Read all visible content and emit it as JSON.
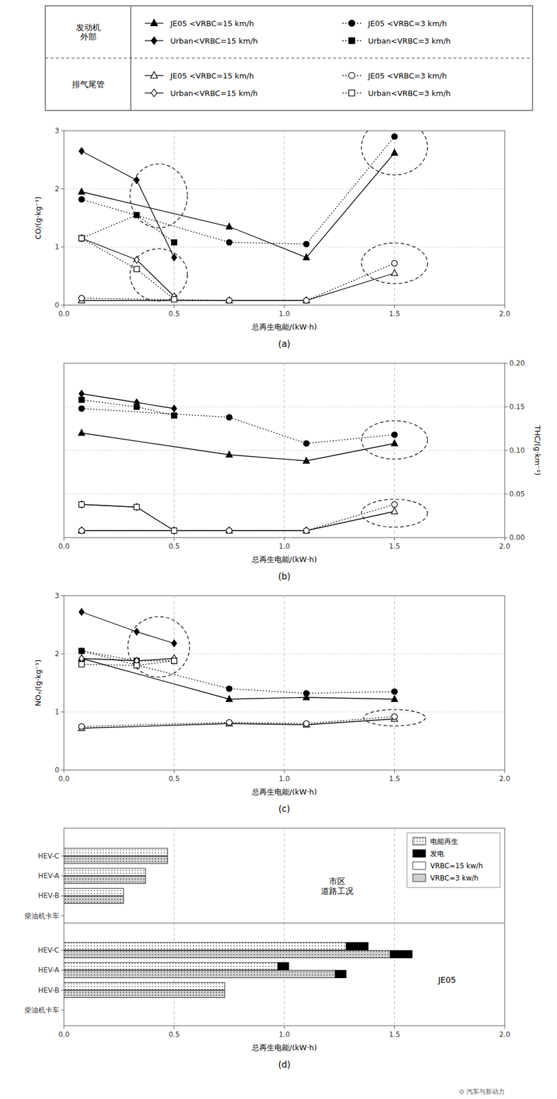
{
  "chart_data": [
    {
      "type": "line",
      "title": "(a)",
      "x_label": "总再生电能/(kW·h)",
      "y_label": "CO/(g·kg⁻¹)",
      "xlim": [
        0,
        2.0
      ],
      "ylim": [
        0,
        3
      ],
      "xticks": [
        {
          "value": 0,
          "label": "0.0"
        },
        0.5,
        {
          "value": 1.0,
          "label": "1.0"
        },
        1.5,
        {
          "value": 2.0,
          "label": "2.0"
        }
      ],
      "yticks": [
        0,
        1,
        2,
        3
      ],
      "grid": true,
      "series": [
        {
          "name": "JE05 <VRBC=15 km/h",
          "group": "发动机\n外部",
          "marker": "triangle",
          "line_style": "solid",
          "color": "#000000",
          "x": [
            0.08,
            0.75,
            1.1,
            1.5
          ],
          "values": [
            1.95,
            1.35,
            0.82,
            2.62
          ]
        },
        {
          "name": "JE05 <VRBC=3 km/h",
          "group": "发动机\n外部",
          "marker": "circle",
          "line_style": "dotted",
          "color": "#000000",
          "x": [
            0.08,
            0.75,
            1.1,
            1.5
          ],
          "values": [
            1.82,
            1.08,
            1.05,
            2.9
          ]
        },
        {
          "name": "Urban<VRBC=15 km/h",
          "group": "发动机\n外部",
          "marker": "diamond",
          "line_style": "solid",
          "color": "#000000",
          "x": [
            0.08,
            0.33,
            0.5
          ],
          "values": [
            2.65,
            2.15,
            0.82
          ]
        },
        {
          "name": "Urban<VRBC=3 km/h",
          "group": "发动机\n外部",
          "marker": "square",
          "line_style": "dotted",
          "color": "#000000",
          "x": [
            0.08,
            0.33,
            0.5
          ],
          "values": [
            1.15,
            1.55,
            1.08
          ]
        },
        {
          "name": "JE05 <VRBC=15 km/h",
          "group": "排气尾管",
          "marker": "triangle",
          "line_style": "solid",
          "color": "#ffffff",
          "x": [
            0.08,
            0.75,
            1.1,
            1.5
          ],
          "values": [
            0.08,
            0.08,
            0.08,
            0.55
          ]
        },
        {
          "name": "JE05 <VRBC=3 km/h",
          "group": "排气尾管",
          "marker": "circle",
          "line_style": "dotted",
          "color": "#ffffff",
          "x": [
            0.08,
            0.75,
            1.1,
            1.5
          ],
          "values": [
            0.12,
            0.08,
            0.08,
            0.72
          ]
        },
        {
          "name": "Urban<VRBC=15 km/h",
          "group": "排气尾管",
          "marker": "diamond",
          "line_style": "solid",
          "color": "#ffffff",
          "x": [
            0.08,
            0.33,
            0.5
          ],
          "values": [
            1.15,
            0.78,
            0.15
          ]
        },
        {
          "name": "Urban<VRBC=3 km/h",
          "group": "排气尾管",
          "marker": "square",
          "line_style": "dotted",
          "color": "#ffffff",
          "x": [
            0.08,
            0.33,
            0.5
          ],
          "values": [
            1.15,
            0.62,
            0.1
          ]
        }
      ],
      "ellipses": [
        {
          "cx": 0.43,
          "cy": 1.88,
          "rx": 0.13,
          "ry": 0.55
        },
        {
          "cx": 0.43,
          "cy": 0.52,
          "rx": 0.13,
          "ry": 0.45
        },
        {
          "cx": 1.5,
          "cy": 2.72,
          "rx": 0.15,
          "ry": 0.48
        },
        {
          "cx": 1.5,
          "cy": 0.72,
          "rx": 0.15,
          "ry": 0.35
        }
      ]
    },
    {
      "type": "line",
      "title": "(b)",
      "x_label": "总再生电能/(kW·h)",
      "y2_label": "THC/(g·km⁻¹)",
      "xlim": [
        0,
        2.0
      ],
      "y2lim": [
        0,
        0.2
      ],
      "xticks": [
        {
          "value": 0,
          "label": "0.0"
        },
        0.5,
        {
          "value": 1.0,
          "label": "1.0"
        },
        1.5,
        {
          "value": 2.0,
          "label": "2.0"
        }
      ],
      "y2ticks": [
        {
          "value": 0,
          "label": "0.00"
        },
        0.05,
        {
          "value": 0.1,
          "label": "0.10"
        },
        0.15,
        {
          "value": 0.2,
          "label": "0.20"
        }
      ],
      "grid": true,
      "series": [
        {
          "axis": "y2",
          "marker": "triangle",
          "line_style": "solid",
          "color": "#000000",
          "x": [
            0.08,
            0.75,
            1.1,
            1.5
          ],
          "values": [
            0.12,
            0.095,
            0.088,
            0.108
          ]
        },
        {
          "axis": "y2",
          "marker": "circle",
          "line_style": "dotted",
          "color": "#000000",
          "x": [
            0.08,
            0.75,
            1.1,
            1.5
          ],
          "values": [
            0.148,
            0.138,
            0.108,
            0.118
          ]
        },
        {
          "axis": "y2",
          "marker": "diamond",
          "line_style": "solid",
          "color": "#000000",
          "x": [
            0.08,
            0.33,
            0.5
          ],
          "values": [
            0.165,
            0.155,
            0.148
          ]
        },
        {
          "axis": "y2",
          "marker": "square",
          "line_style": "dotted",
          "color": "#000000",
          "x": [
            0.08,
            0.33,
            0.5
          ],
          "values": [
            0.158,
            0.15,
            0.14
          ]
        },
        {
          "axis": "y2",
          "marker": "triangle",
          "line_style": "solid",
          "color": "#ffffff",
          "x": [
            0.08,
            0.75,
            1.1,
            1.5
          ],
          "values": [
            0.008,
            0.008,
            0.008,
            0.03
          ]
        },
        {
          "axis": "y2",
          "marker": "circle",
          "line_style": "dotted",
          "color": "#ffffff",
          "x": [
            0.08,
            0.75,
            1.1,
            1.5
          ],
          "values": [
            0.008,
            0.008,
            0.008,
            0.038
          ]
        },
        {
          "axis": "y2",
          "marker": "diamond",
          "line_style": "solid",
          "color": "#ffffff",
          "x": [
            0.08,
            0.33,
            0.5
          ],
          "values": [
            0.038,
            0.035,
            0.008
          ]
        },
        {
          "axis": "y2",
          "marker": "square",
          "line_style": "dotted",
          "color": "#ffffff",
          "x": [
            0.08,
            0.33,
            0.5
          ],
          "values": [
            0.038,
            0.035,
            0.008
          ]
        }
      ],
      "ellipses": [
        {
          "cx": 1.5,
          "cy": 0.112,
          "rx": 0.15,
          "ry": 0.022
        },
        {
          "cx": 1.5,
          "cy": 0.028,
          "rx": 0.15,
          "ry": 0.016
        }
      ]
    },
    {
      "type": "line",
      "title": "(c)",
      "x_label": "总再生电能/(kW·h)",
      "y_label": "NOₓ/(g·kg⁻¹)",
      "xlim": [
        0,
        2.0
      ],
      "ylim": [
        0,
        3
      ],
      "xticks": [
        {
          "value": 0,
          "label": "0.0"
        },
        0.5,
        {
          "value": 1.0,
          "label": "1.0"
        },
        1.5,
        {
          "value": 2.0,
          "label": "2.0"
        }
      ],
      "yticks": [
        0,
        1,
        2,
        3
      ],
      "grid": true,
      "series": [
        {
          "marker": "triangle",
          "line_style": "solid",
          "color": "#000000",
          "x": [
            0.08,
            0.75,
            1.1,
            1.5
          ],
          "values": [
            1.92,
            1.22,
            1.25,
            1.22
          ]
        },
        {
          "marker": "circle",
          "line_style": "dotted",
          "color": "#000000",
          "x": [
            0.08,
            0.75,
            1.1,
            1.5
          ],
          "values": [
            2.05,
            1.4,
            1.32,
            1.35
          ]
        },
        {
          "marker": "diamond",
          "line_style": "solid",
          "color": "#000000",
          "x": [
            0.08,
            0.33,
            0.5
          ],
          "values": [
            2.72,
            2.38,
            2.18
          ]
        },
        {
          "marker": "square",
          "line_style": "dotted",
          "color": "#000000",
          "x": [
            0.08,
            0.33,
            0.5
          ],
          "values": [
            2.05,
            1.88,
            1.88
          ]
        },
        {
          "marker": "triangle",
          "line_style": "solid",
          "color": "#ffffff",
          "x": [
            0.08,
            0.75,
            1.1,
            1.5
          ],
          "values": [
            0.72,
            0.8,
            0.78,
            0.88
          ]
        },
        {
          "marker": "circle",
          "line_style": "dotted",
          "color": "#ffffff",
          "x": [
            0.08,
            0.75,
            1.1,
            1.5
          ],
          "values": [
            0.75,
            0.82,
            0.8,
            0.92
          ]
        },
        {
          "marker": "diamond",
          "line_style": "solid",
          "color": "#ffffff",
          "x": [
            0.08,
            0.33,
            0.5
          ],
          "values": [
            1.92,
            1.88,
            1.92
          ]
        },
        {
          "marker": "square",
          "line_style": "dotted",
          "color": "#ffffff",
          "x": [
            0.08,
            0.33,
            0.5
          ],
          "values": [
            1.82,
            1.8,
            1.88
          ]
        }
      ],
      "ellipses": [
        {
          "cx": 0.43,
          "cy": 2.12,
          "rx": 0.14,
          "ry": 0.52
        },
        {
          "cx": 1.5,
          "cy": 0.9,
          "rx": 0.14,
          "ry": 0.14
        }
      ]
    },
    {
      "type": "bar",
      "orientation": "horizontal",
      "title": "(d)",
      "x_label": "总再生电能/(kW·h)",
      "xlim": [
        0,
        2.0
      ],
      "xticks": [
        {
          "value": 0,
          "label": "0.0"
        },
        0.5,
        {
          "value": 1.0,
          "label": "1.0"
        },
        1.5,
        {
          "value": 2.0,
          "label": "2.0"
        }
      ],
      "grid": true,
      "categories": [
        "柴油机卡车",
        "HEV-B",
        "HEV-A",
        "HEV-C",
        "柴油机卡车",
        "HEV-B",
        "HEV-A",
        "HEV-C"
      ],
      "group_labels": [
        "市区\n道路工况",
        "JE05"
      ],
      "legend_labels": [
        "电能再生",
        "发电"
      ],
      "series": [
        {
          "name": "VRBC=15 kw/h",
          "color": "#ffffff",
          "values": [
            0.0,
            0.27,
            0.37,
            0.47,
            0.0,
            0.73,
            1.02,
            1.38
          ],
          "generation": [
            0.0,
            0.0,
            0.0,
            0.0,
            0.0,
            0.0,
            0.05,
            0.1
          ]
        },
        {
          "name": "VRBC=3 kw/h",
          "color": "#d0d0d0",
          "values": [
            0.0,
            0.27,
            0.37,
            0.47,
            0.0,
            0.73,
            1.28,
            1.58
          ],
          "generation": [
            0.0,
            0.0,
            0.0,
            0.0,
            0.0,
            0.0,
            0.05,
            0.1
          ]
        }
      ],
      "note": "⊙ 汽车与新动力"
    }
  ]
}
